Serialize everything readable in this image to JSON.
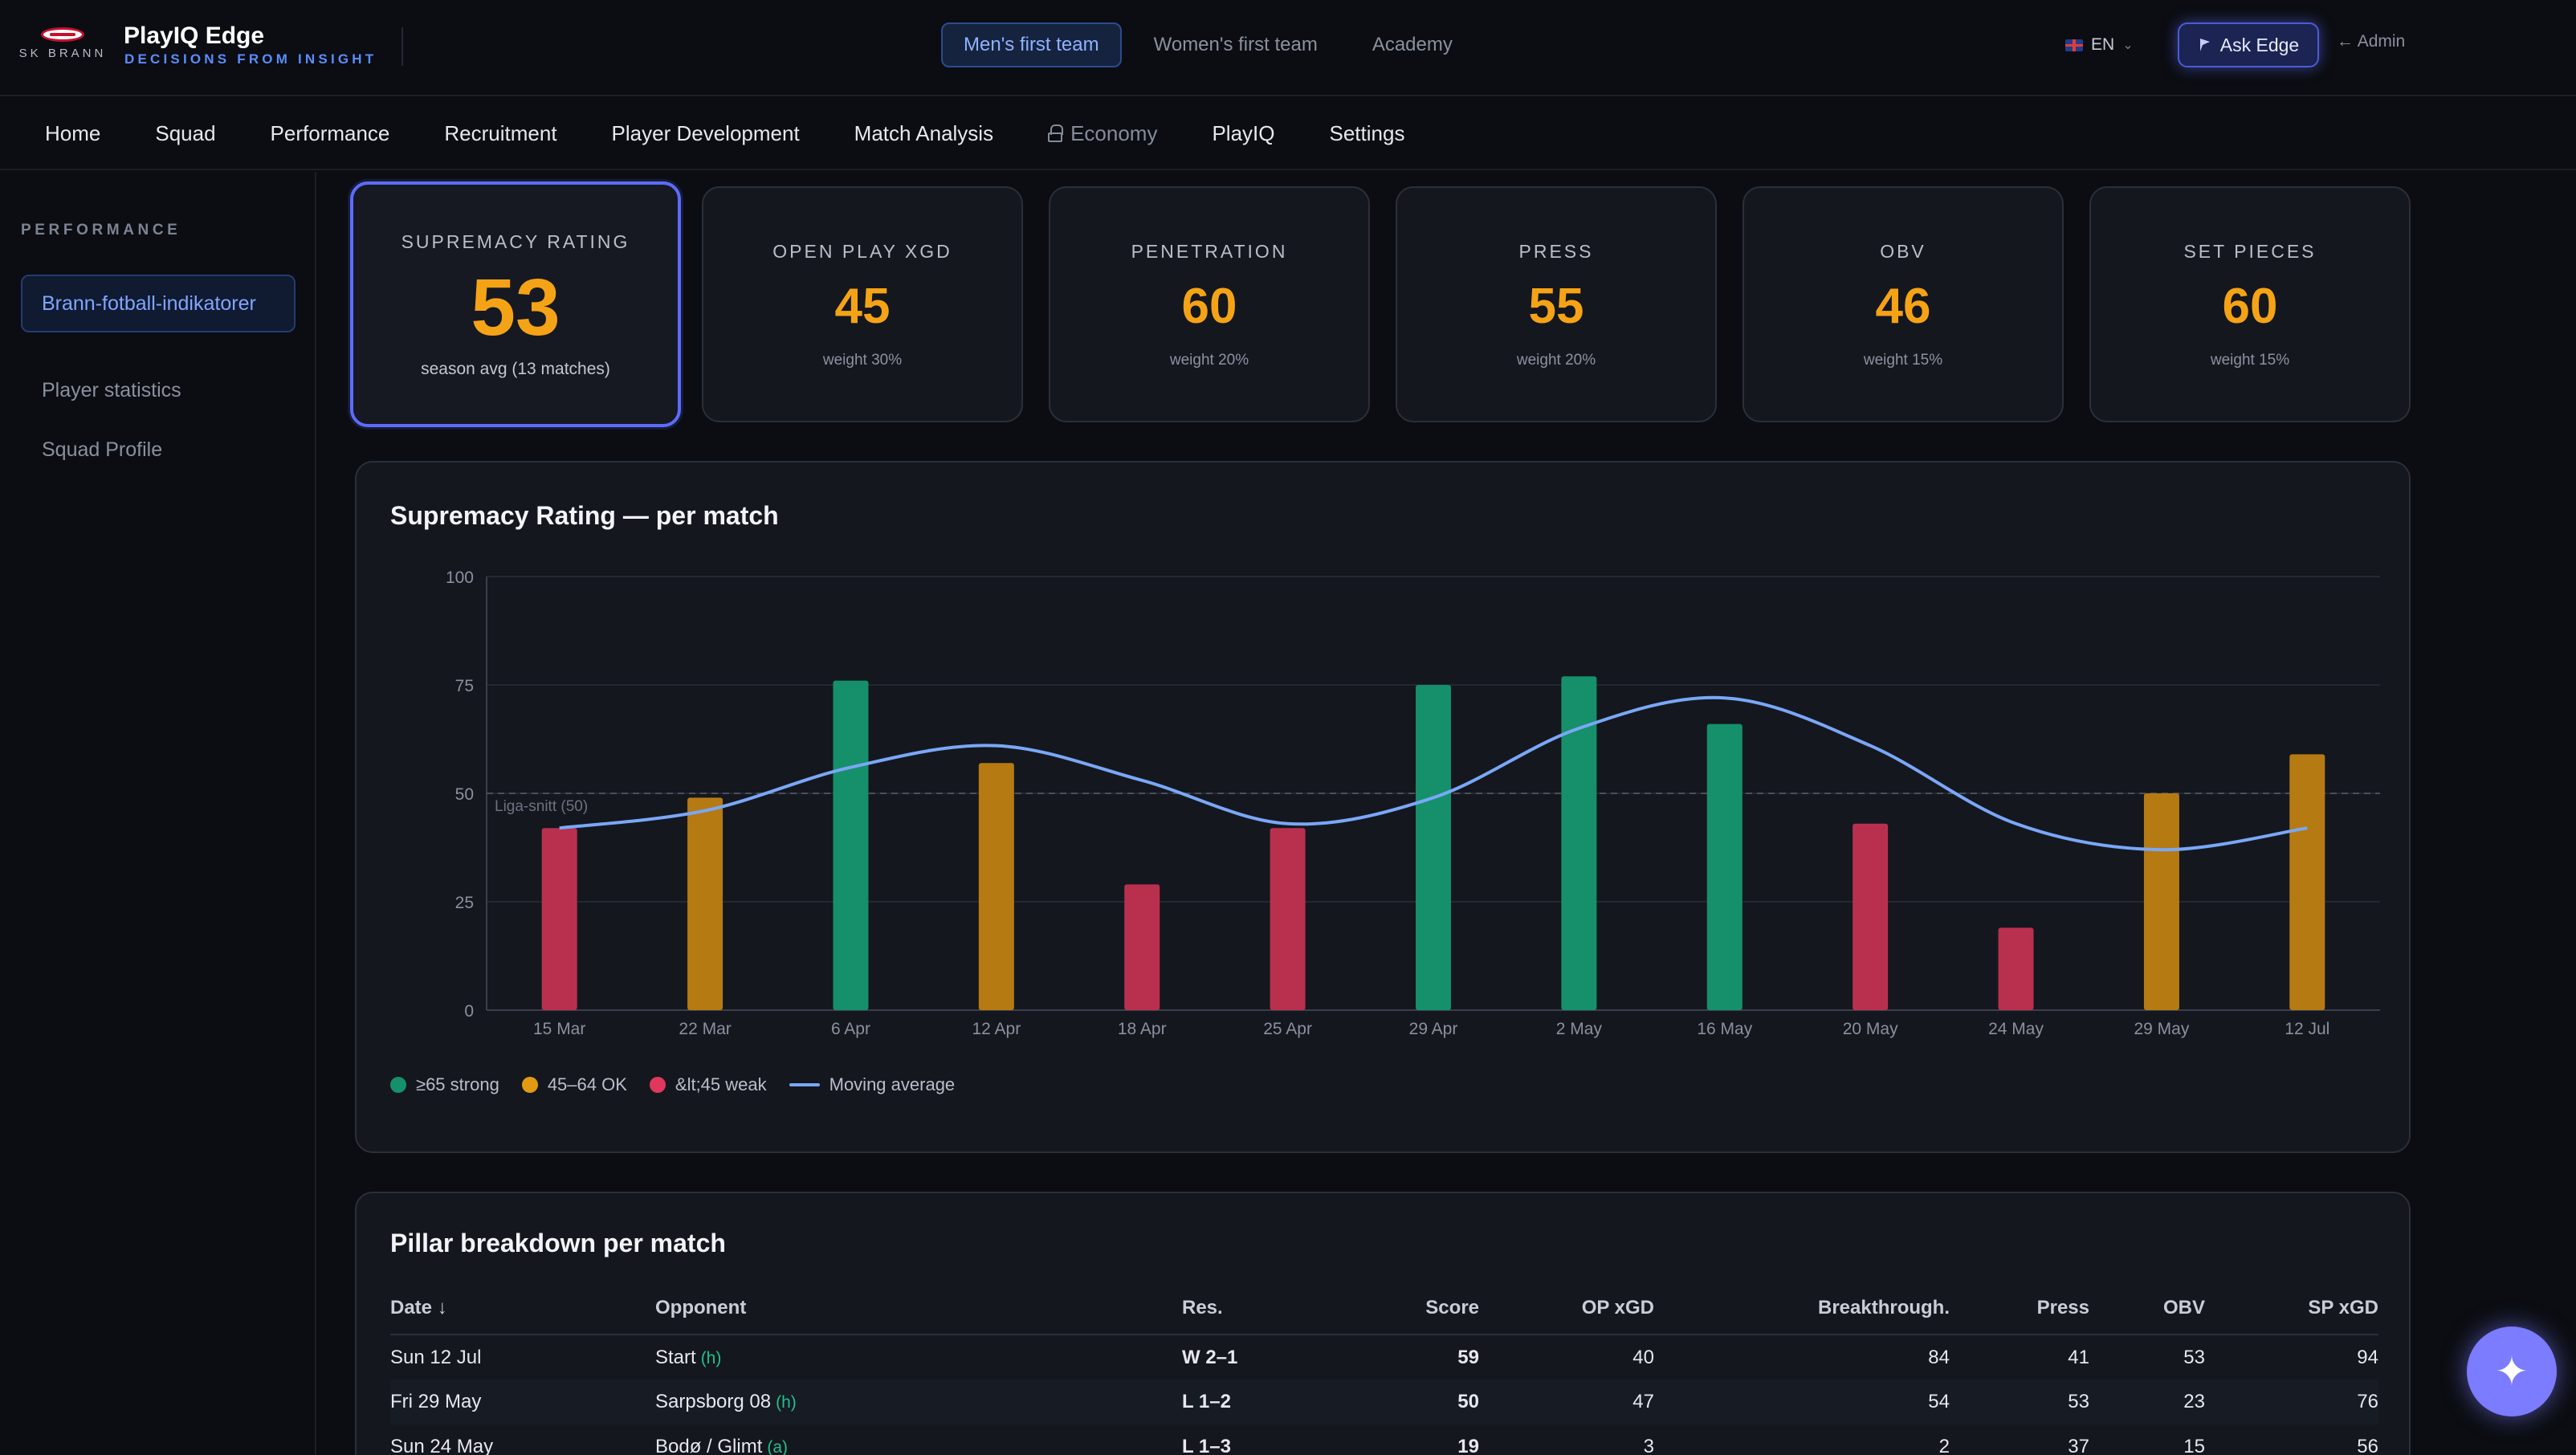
{
  "brand": {
    "club": "SK BRANN",
    "badge_text": "BRANN",
    "title": "PlayIQ Edge",
    "tagline": "DECISIONS FROM INSIGHT"
  },
  "team_tabs": [
    {
      "label": "Men's first team",
      "active": true
    },
    {
      "label": "Women's first team",
      "active": false
    },
    {
      "label": "Academy",
      "active": false
    }
  ],
  "header": {
    "language": "EN",
    "ask_label": "Ask Edge",
    "admin_label": "Admin"
  },
  "nav": [
    {
      "label": "Home"
    },
    {
      "label": "Squad"
    },
    {
      "label": "Performance"
    },
    {
      "label": "Recruitment"
    },
    {
      "label": "Player Development"
    },
    {
      "label": "Match Analysis"
    },
    {
      "label": "Economy",
      "locked": true
    },
    {
      "label": "PlayIQ"
    },
    {
      "label": "Settings"
    }
  ],
  "sidebar": {
    "heading": "PERFORMANCE",
    "items": [
      {
        "label": "Brann-fotball-indikatorer",
        "active": true
      },
      {
        "label": "Player statistics"
      },
      {
        "label": "Squad Profile"
      }
    ]
  },
  "kpis": [
    {
      "label": "SUPREMACY RATING",
      "value": "53",
      "sub": "season avg (13 matches)"
    },
    {
      "label": "OPEN PLAY XGD",
      "value": "45",
      "sub": "weight 30%"
    },
    {
      "label": "PENETRATION",
      "value": "60",
      "sub": "weight 20%"
    },
    {
      "label": "PRESS",
      "value": "55",
      "sub": "weight 20%"
    },
    {
      "label": "OBV",
      "value": "46",
      "sub": "weight 15%"
    },
    {
      "label": "SET PIECES",
      "value": "60",
      "sub": "weight 15%"
    }
  ],
  "chart": {
    "title": "Supremacy Rating — per match",
    "reference_label": "Liga-snitt (50)",
    "legend": {
      "strong": "≥65 strong",
      "ok": "45–64 OK",
      "weak": "&lt;45 weak",
      "avg": "Moving average"
    }
  },
  "chart_data": {
    "type": "bar",
    "title": "Supremacy Rating — per match",
    "categories": [
      "15 Mar",
      "22 Mar",
      "6 Apr",
      "12 Apr",
      "18 Apr",
      "25 Apr",
      "29 Apr",
      "2 May",
      "16 May",
      "20 May",
      "24 May",
      "29 May",
      "12 Jul"
    ],
    "series": [
      {
        "name": "Supremacy Rating",
        "values": [
          42,
          49,
          76,
          57,
          29,
          42,
          75,
          77,
          66,
          43,
          19,
          50,
          59
        ]
      },
      {
        "name": "Moving average",
        "type": "line",
        "values": [
          42,
          46,
          56,
          61,
          53,
          43,
          49,
          65,
          72,
          61,
          43,
          37,
          42
        ]
      }
    ],
    "reference_line": {
      "label": "Liga-snitt (50)",
      "value": 50
    },
    "ylim": [
      0,
      100
    ],
    "yticks": [
      0,
      25,
      50,
      75,
      100
    ],
    "bands": [
      {
        "label": "≥65 strong",
        "min": 65,
        "color": "#15906a"
      },
      {
        "label": "45–64 OK",
        "min": 45,
        "max": 64,
        "color": "#b57a12"
      },
      {
        "label": "&lt;45 weak",
        "max": 45,
        "color": "#b9304f"
      }
    ],
    "line_color": "#7aa7f7",
    "grid": true,
    "legend_position": "bottom-left"
  },
  "table": {
    "title": "Pillar breakdown per match",
    "columns": [
      "Date ↓",
      "Opponent",
      "Res.",
      "Score",
      "OP xGD",
      "Breakthrough.",
      "Press",
      "OBV",
      "SP xGD"
    ],
    "rows": [
      {
        "date": "Sun 12 Jul",
        "opponent": "Start",
        "venue": "(h)",
        "result": "W 2–1",
        "score": "59",
        "op_xgd": "40",
        "breakthrough": "84",
        "press": "41",
        "obv": "53",
        "sp_xgd": "94"
      },
      {
        "date": "Fri 29 May",
        "opponent": "Sarpsborg 08",
        "venue": "(h)",
        "result": "L 1–2",
        "score": "50",
        "op_xgd": "47",
        "breakthrough": "54",
        "press": "53",
        "obv": "23",
        "sp_xgd": "76"
      },
      {
        "date": "Sun 24 May",
        "opponent": "Bodø / Glimt",
        "venue": "(a)",
        "result": "L 1–3",
        "score": "19",
        "op_xgd": "3",
        "breakthrough": "2",
        "press": "37",
        "obv": "15",
        "sp_xgd": "56"
      }
    ]
  },
  "colors": {
    "accent": "#5b8cff",
    "score": "#f5a316",
    "win": "#22c08a",
    "loss": "#ef4a66"
  }
}
